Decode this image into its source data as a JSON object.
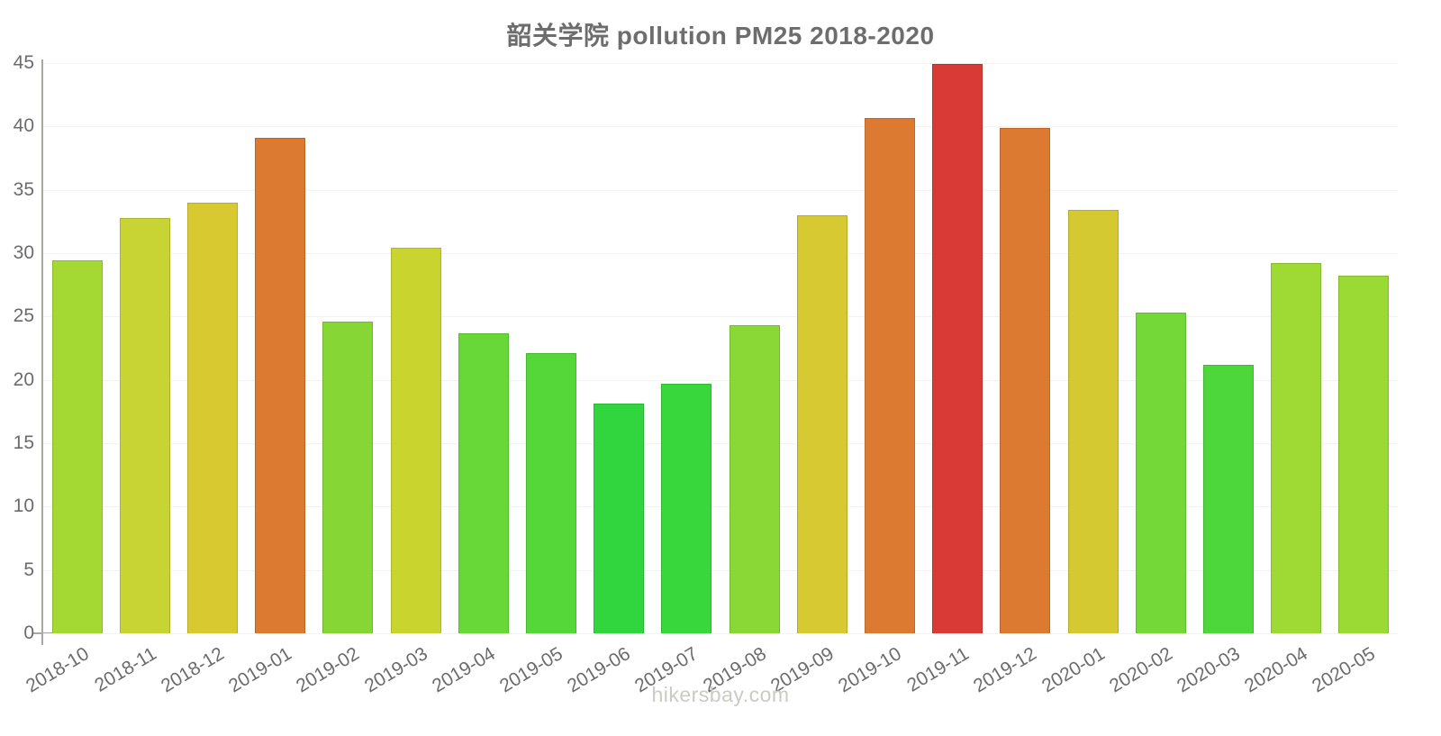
{
  "chart": {
    "title": "韶关学院 pollution PM25 2018-2020",
    "watermark": "hikersbay.com"
  },
  "chart_data": {
    "type": "bar",
    "title": "韶关学院 pollution PM25 2018-2020",
    "xlabel": "",
    "ylabel": "",
    "ylim": [
      0,
      45
    ],
    "yticks": [
      0,
      5,
      10,
      15,
      20,
      25,
      30,
      35,
      40,
      45
    ],
    "grid": true,
    "legend": false,
    "categories": [
      "2018-10",
      "2018-11",
      "2018-12",
      "2019-01",
      "2019-02",
      "2019-03",
      "2019-04",
      "2019-05",
      "2019-06",
      "2019-07",
      "2019-08",
      "2019-09",
      "2019-10",
      "2019-11",
      "2019-12",
      "2020-01",
      "2020-02",
      "2020-03",
      "2020-04",
      "2020-05"
    ],
    "values": [
      29.4,
      32.8,
      34.0,
      39.1,
      24.6,
      30.4,
      23.7,
      22.1,
      18.1,
      19.7,
      24.3,
      33.0,
      40.7,
      44.9,
      39.9,
      33.4,
      25.3,
      21.2,
      29.2,
      28.2
    ],
    "bar_colors": [
      "#a4d934",
      "#c8d434",
      "#d8c931",
      "#dc7a31",
      "#86d735",
      "#c9d42f",
      "#68d839",
      "#55d73a",
      "#31d63e",
      "#38d73c",
      "#89d836",
      "#d6c931",
      "#dc7a31",
      "#d93a35",
      "#dc7a31",
      "#d5c932",
      "#74d838",
      "#4ed73b",
      "#9ed934",
      "#9bd934"
    ],
    "axis_colors": {
      "axis_line": "#a9a9a4",
      "gridline": "#f2f2ef",
      "tick_label": "#6b6b6b",
      "title": "#6d6d6d",
      "watermark": "#cbcbc3"
    }
  }
}
